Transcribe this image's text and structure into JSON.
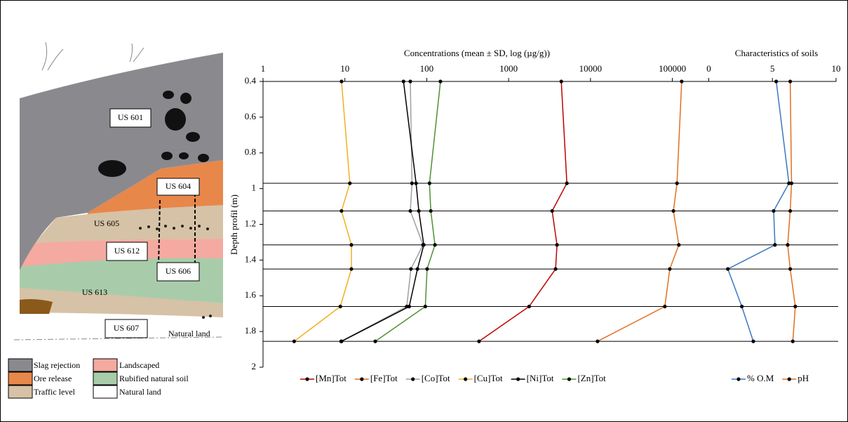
{
  "chart_data": {
    "type": "line",
    "x_label": "Concentrations (mean ± SD, log (µg/g))",
    "x2_label": "Characteristics of soils",
    "y_label": "Depth profil (m)",
    "y": [
      0.4,
      0.97,
      1.125,
      1.315,
      1.45,
      1.66,
      1.855
    ],
    "ylim": [
      0.4,
      2
    ],
    "yticks": [
      0.4,
      0.6,
      0.8,
      1,
      1.2,
      1.4,
      1.6,
      1.8,
      2
    ],
    "y_inverted": true,
    "xscale": "log",
    "xlim": [
      1,
      10000000
    ],
    "xticks": [
      1,
      10,
      100,
      1000,
      10000,
      100000
    ],
    "x2lim": [
      -35,
      10
    ],
    "x2ticks": [
      0,
      5,
      10
    ],
    "depth_lines": true,
    "legend": "bottom",
    "series": [
      {
        "name": "[Mn]Tot",
        "color": "#c00000",
        "values": [
          4400,
          5150,
          3400,
          3900,
          3750,
          1780,
          435
        ]
      },
      {
        "name": "[Fe]Tot",
        "color": "#e07020",
        "values": [
          130000,
          114000,
          103000,
          120000,
          93000,
          81000,
          12200
        ]
      },
      {
        "name": "[Co]Tot",
        "color": "#a0a0a0",
        "values": [
          63,
          66,
          63,
          90,
          64,
          57,
          9
        ]
      },
      {
        "name": "[Cu]Tot",
        "color": "#f0b020",
        "values": [
          9.1,
          11.5,
          9.1,
          12,
          12,
          8.8,
          2.4
        ]
      },
      {
        "name": "[Ni]Tot",
        "color": "#000000",
        "values": [
          52,
          74,
          80,
          92,
          77,
          61,
          9.1
        ]
      },
      {
        "name": "[Zn]Tot",
        "color": "#509030",
        "values": [
          147,
          108,
          112,
          126,
          101,
          96,
          23.5
        ]
      },
      {
        "name": "% O.M",
        "color": "#3a78c0",
        "axis": "x2",
        "values": [
          5.3,
          6.3,
          5.1,
          5.2,
          1.5,
          2.6,
          3.5
        ]
      },
      {
        "name": "pH",
        "color": "#e07020",
        "axis": "x2",
        "values": [
          6.4,
          6.5,
          6.4,
          6.2,
          6.4,
          6.8,
          6.6
        ]
      }
    ]
  },
  "illustration": {
    "labels": [
      "US 601",
      "US 604",
      "US 605",
      "US 612",
      "US 606",
      "US 613",
      "US 607",
      "Natural land"
    ],
    "legend": [
      "Slag rejection",
      "Ore release",
      "Traffic level",
      "Landscaped",
      "Rubified natural soil",
      "Natural land"
    ]
  }
}
